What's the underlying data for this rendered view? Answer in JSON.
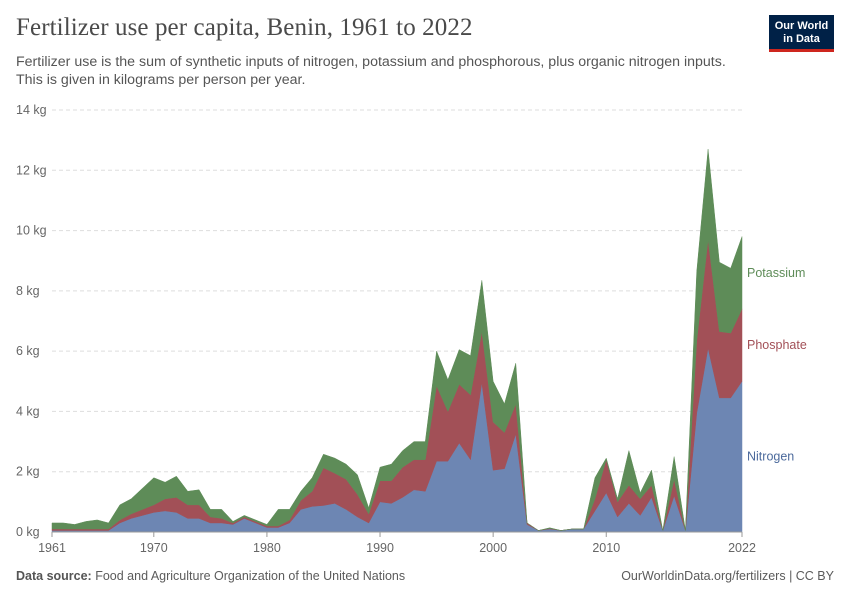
{
  "header": {
    "title": "Fertilizer use per capita, Benin, 1961 to 2022",
    "subtitle": "Fertilizer use is the sum of synthetic inputs of nitrogen, potassium and phosphorous, plus organic nitrogen inputs. This is given in kilograms per person per year."
  },
  "logo": {
    "line1": "Our World",
    "line2": "in Data",
    "bg": "#002147",
    "accent": "#ce261e"
  },
  "footer": {
    "source_label": "Data source:",
    "source_text": "Food and Agriculture Organization of the United Nations",
    "right_text": "OurWorldinData.org/fertilizers | CC BY"
  },
  "chart_data": {
    "type": "area",
    "stacked": true,
    "x": [
      1961,
      1962,
      1963,
      1964,
      1965,
      1966,
      1967,
      1968,
      1969,
      1970,
      1971,
      1972,
      1973,
      1974,
      1975,
      1976,
      1977,
      1978,
      1979,
      1980,
      1981,
      1982,
      1983,
      1984,
      1985,
      1986,
      1987,
      1988,
      1989,
      1990,
      1991,
      1992,
      1993,
      1994,
      1995,
      1996,
      1997,
      1998,
      1999,
      2000,
      2001,
      2002,
      2003,
      2004,
      2005,
      2006,
      2007,
      2008,
      2009,
      2010,
      2011,
      2012,
      2013,
      2014,
      2015,
      2016,
      2017,
      2018,
      2019,
      2020,
      2021,
      2022
    ],
    "series": [
      {
        "name": "Nitrogen",
        "color": "#6d86b3",
        "values": [
          0.05,
          0.05,
          0.05,
          0.05,
          0.05,
          0.05,
          0.3,
          0.45,
          0.55,
          0.65,
          0.7,
          0.65,
          0.45,
          0.45,
          0.3,
          0.3,
          0.25,
          0.45,
          0.3,
          0.15,
          0.15,
          0.3,
          0.75,
          0.85,
          0.88,
          0.95,
          0.75,
          0.5,
          0.3,
          1.0,
          0.95,
          1.15,
          1.4,
          1.35,
          2.35,
          2.35,
          2.95,
          2.4,
          4.95,
          2.05,
          2.1,
          3.25,
          0.25,
          0.05,
          0.1,
          0.05,
          0.1,
          0.1,
          0.7,
          1.3,
          0.5,
          0.95,
          0.55,
          1.15,
          0.05,
          1.2,
          0.05,
          3.95,
          6.1,
          4.45,
          4.45,
          5.0
        ]
      },
      {
        "name": "Phosphate",
        "color": "#a25057",
        "values": [
          0.05,
          0.05,
          0.05,
          0.05,
          0.05,
          0.05,
          0.1,
          0.15,
          0.2,
          0.25,
          0.4,
          0.5,
          0.45,
          0.45,
          0.2,
          0.15,
          0.05,
          0.05,
          0.05,
          0.05,
          0.05,
          0.1,
          0.3,
          0.5,
          1.25,
          1.0,
          1.0,
          0.75,
          0.3,
          0.7,
          0.75,
          1.0,
          1.0,
          1.05,
          2.5,
          1.65,
          1.95,
          2.15,
          1.7,
          1.6,
          1.2,
          1.0,
          0.05,
          0.0,
          0.02,
          0.0,
          0.0,
          0.0,
          0.4,
          1.1,
          0.5,
          0.6,
          0.55,
          0.4,
          0.0,
          0.55,
          0.0,
          2.4,
          3.6,
          2.2,
          2.15,
          2.4
        ]
      },
      {
        "name": "Potassium",
        "color": "#5e8c58",
        "values": [
          0.2,
          0.2,
          0.15,
          0.25,
          0.3,
          0.2,
          0.5,
          0.5,
          0.7,
          0.9,
          0.55,
          0.7,
          0.45,
          0.5,
          0.25,
          0.3,
          0.05,
          0.05,
          0.05,
          0.05,
          0.55,
          0.35,
          0.3,
          0.45,
          0.45,
          0.5,
          0.5,
          0.65,
          0.2,
          0.45,
          0.55,
          0.55,
          0.6,
          0.6,
          1.15,
          1.05,
          1.15,
          1.3,
          1.7,
          1.35,
          0.95,
          1.35,
          0.0,
          0.0,
          0.02,
          0.0,
          0.0,
          0.0,
          0.7,
          0.05,
          0.1,
          1.15,
          0.2,
          0.5,
          0.0,
          0.75,
          0.0,
          2.3,
          3.0,
          2.3,
          2.15,
          2.4
        ]
      }
    ],
    "ylim": [
      0,
      14
    ],
    "yticks": [
      0,
      2,
      4,
      6,
      8,
      10,
      12,
      14
    ],
    "ytick_labels": [
      "0 kg",
      "2 kg",
      "4 kg",
      "6 kg",
      "8 kg",
      "10 kg",
      "12 kg",
      "14 kg"
    ],
    "xticks": [
      1961,
      1970,
      1980,
      1990,
      2000,
      2010,
      2022
    ],
    "xtick_labels": [
      "1961",
      "1970",
      "1980",
      "1990",
      "2000",
      "2010",
      "2022"
    ],
    "grid": "horizontal dashed",
    "legend": "right, inline labels",
    "legend_labels": [
      {
        "name": "Potassium",
        "color": "#5e8c58"
      },
      {
        "name": "Phosphate",
        "color": "#a25057"
      },
      {
        "name": "Nitrogen",
        "color": "#4c6a9c"
      }
    ]
  }
}
